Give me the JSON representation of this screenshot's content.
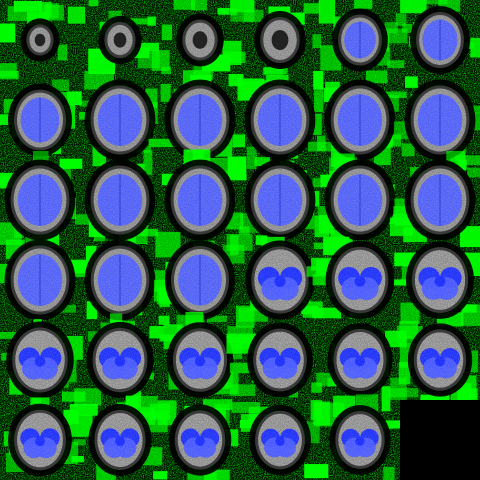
{
  "mosaic": {
    "rows": 6,
    "cols": 6,
    "slice_count": 35,
    "colors": {
      "background": "#000000",
      "mask_overlay": "#00ff00",
      "brain_overlay": "#4b5cff",
      "brain_overlay_dark": "#1a2dff",
      "anatomy_gray": "#8a8a8a",
      "anatomy_light": "#d8d8d8"
    }
  }
}
